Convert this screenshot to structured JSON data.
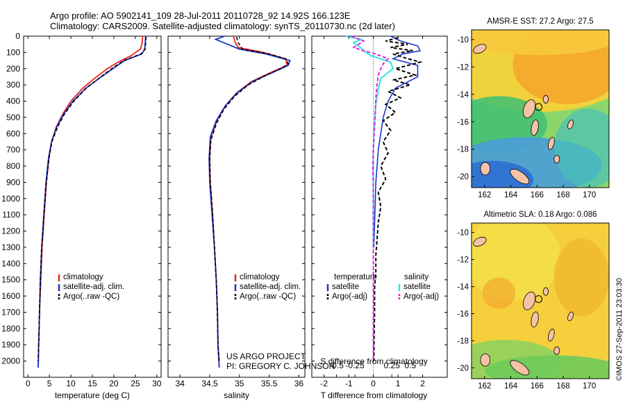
{
  "header": {
    "line1": "Argo profile: AO 5902141_109 28-Jul-2011 20110728_92 14.92S 166.123E",
    "line2": "Climatology: CARS2009. Satellite-adjusted climatology: synTS_20110730.nc (2d later)"
  },
  "colors": {
    "climatology": "#e8231c",
    "satellite": "#1a33cc",
    "argo": "#000000",
    "salinity_satellite": "#2ee6e6",
    "salinity_argo": "#e020e0"
  },
  "footer": {
    "project_line1": "US ARGO PROJECT",
    "project_line2": "PI: GREGORY C. JOHNSON",
    "timestamp": "©IMOS 27-Sep-2011 23:03:30"
  },
  "chart_data": [
    {
      "type": "line",
      "id": "temperature",
      "xlabel": "temperature (deg C)",
      "xlim": [
        -1,
        31
      ],
      "xticks": [
        0,
        5,
        10,
        15,
        20,
        25,
        30
      ],
      "xtick_labels": [
        "0",
        "5",
        "10",
        "15",
        "20",
        "25",
        "30"
      ],
      "ylim": [
        0,
        2100
      ],
      "yticks": [
        0,
        100,
        200,
        300,
        400,
        500,
        600,
        700,
        800,
        900,
        1000,
        1100,
        1200,
        1300,
        1400,
        1500,
        1600,
        1700,
        1800,
        1900,
        2000
      ],
      "ytick_labels": [
        "0",
        "100",
        "200",
        "300",
        "400",
        "500",
        "600",
        "700",
        "800",
        "900",
        "1000",
        "1100",
        "1200",
        "1300",
        "1400",
        "1500",
        "1600",
        "1700",
        "1800",
        "1900",
        "2000"
      ],
      "legend": [
        "climatology",
        "satellite-adj. clim.",
        "Argo(..raw -QC)"
      ],
      "series": [
        {
          "name": "climatology",
          "depth": [
            0,
            40,
            80,
            120,
            160,
            200,
            260,
            320,
            400,
            480,
            560,
            650,
            750,
            900,
            1100,
            1300,
            1500,
            1700,
            1900,
            2040
          ],
          "values": [
            26.7,
            26.6,
            26.2,
            24.0,
            21.0,
            18.5,
            15.5,
            12.8,
            10.0,
            8.1,
            6.6,
            5.5,
            4.9,
            4.3,
            3.8,
            3.3,
            3.0,
            2.7,
            2.5,
            2.4
          ]
        },
        {
          "name": "satellite-adj. clim.",
          "depth": [
            0,
            40,
            80,
            110,
            150,
            200,
            260,
            320,
            400,
            480,
            560,
            650,
            750,
            900,
            1100,
            1300,
            1500,
            1700,
            1900,
            2040
          ],
          "values": [
            27.4,
            27.3,
            27.2,
            26.5,
            22.5,
            19.8,
            16.6,
            13.5,
            10.5,
            8.3,
            6.7,
            5.5,
            4.8,
            4.2,
            3.7,
            3.2,
            2.9,
            2.7,
            2.5,
            2.4
          ]
        },
        {
          "name": "Argo(..raw -QC)",
          "depth": [
            5,
            40,
            80,
            110,
            150,
            200,
            260,
            320,
            400,
            480,
            560,
            650,
            750,
            900,
            1100,
            1300,
            1500,
            1700,
            1900,
            2000
          ],
          "values": [
            27.5,
            27.4,
            27.3,
            26.3,
            22.3,
            19.5,
            16.5,
            13.6,
            10.7,
            8.5,
            6.9,
            5.6,
            4.9,
            4.3,
            3.7,
            3.2,
            2.9,
            2.7,
            2.5,
            2.4
          ]
        }
      ]
    },
    {
      "type": "line",
      "id": "salinity",
      "xlabel": "salinity",
      "xlim": [
        33.8,
        36.1
      ],
      "xticks": [
        34,
        34.5,
        35,
        35.5,
        36
      ],
      "xtick_labels": [
        "34",
        "34.5",
        "35",
        "35.5",
        "36"
      ],
      "ylim": [
        0,
        2100
      ],
      "legend": [
        "climatology",
        "satellite-adj. clim.",
        "Argo(..raw -QC)"
      ],
      "series": [
        {
          "name": "climatology",
          "depth": [
            0,
            40,
            70,
            100,
            140,
            180,
            220,
            280,
            350,
            430,
            520,
            620,
            750,
            900,
            1100,
            1300,
            1500,
            1700,
            1900,
            2040
          ],
          "values": [
            34.9,
            34.93,
            34.98,
            35.4,
            35.78,
            35.8,
            35.55,
            35.2,
            34.95,
            34.76,
            34.62,
            34.52,
            34.5,
            34.51,
            34.55,
            34.58,
            34.61,
            34.63,
            34.64,
            34.66
          ]
        },
        {
          "name": "satellite-adj. clim.",
          "depth": [
            0,
            20,
            50,
            80,
            110,
            150,
            180,
            220,
            280,
            350,
            430,
            520,
            620,
            750,
            900,
            1100,
            1300,
            1500,
            1700,
            1900,
            2040
          ],
          "values": [
            34.75,
            34.6,
            34.8,
            35.0,
            35.45,
            35.85,
            35.82,
            35.58,
            35.22,
            34.96,
            34.76,
            34.61,
            34.51,
            34.49,
            34.5,
            34.54,
            34.58,
            34.61,
            34.63,
            34.64,
            34.66
          ]
        },
        {
          "name": "Argo(..raw -QC)",
          "depth": [
            5,
            40,
            80,
            110,
            140,
            170,
            200,
            240,
            300,
            370,
            450,
            540,
            640,
            750,
            900,
            1100,
            1300,
            1500,
            1700,
            1900,
            2000
          ],
          "values": [
            34.95,
            34.98,
            35.05,
            35.5,
            35.78,
            35.82,
            35.7,
            35.45,
            35.15,
            34.92,
            34.74,
            34.61,
            34.52,
            34.5,
            34.51,
            34.55,
            34.58,
            34.61,
            34.63,
            34.64,
            34.66
          ]
        }
      ]
    },
    {
      "type": "line",
      "id": "differences",
      "xlabel": "T difference from climatology",
      "xlabel2": "S difference from climatology",
      "xlim": [
        -2.5,
        3.0
      ],
      "xticks": [
        -2,
        -1,
        0,
        1,
        2
      ],
      "xtick_labels": [
        "-2",
        "-1",
        "0",
        "1",
        "2"
      ],
      "xticks2": [
        -1.5,
        -0.75,
        0.75,
        1.5
      ],
      "xtick_labels2": [
        "-0.5",
        "-0.25",
        "0.25",
        "0.5"
      ],
      "ylim": [
        0,
        2100
      ],
      "legend_group1_title": "temperature",
      "legend_group1": [
        "satellite",
        "Argo(-adj)"
      ],
      "legend_group2_title": "salinity",
      "legend_group2": [
        "satellite",
        "Argo(-adj)"
      ],
      "series": [
        {
          "name": "T satellite",
          "depth": [
            0,
            30,
            60,
            90,
            110,
            140,
            180,
            250,
            320,
            400,
            500,
            600,
            700,
            800,
            900,
            1000,
            1100,
            1200,
            1300
          ],
          "values": [
            0.7,
            1.1,
            1.8,
            1.9,
            1.2,
            0.8,
            1.8,
            1.8,
            0.9,
            0.6,
            0.4,
            0.3,
            0.2,
            0.15,
            0.1,
            0.08,
            0.06,
            0.04,
            0.02
          ]
        },
        {
          "name": "T Argo(-adj)",
          "depth": [
            10,
            30,
            50,
            70,
            90,
            110,
            130,
            160,
            200,
            240,
            270,
            300,
            340,
            380,
            420,
            470,
            520,
            580,
            650,
            720,
            800,
            880,
            960,
            1050,
            1150,
            1250,
            1350,
            1450,
            1550,
            1700,
            1850,
            2000
          ],
          "values": [
            1.0,
            0.5,
            1.4,
            0.7,
            1.6,
            0.8,
            1.2,
            1.9,
            0.9,
            1.7,
            0.8,
            1.5,
            0.6,
            1.1,
            0.5,
            0.9,
            0.4,
            0.7,
            0.4,
            0.6,
            0.3,
            0.5,
            0.2,
            0.3,
            0.2,
            0.15,
            0.1,
            0.1,
            0.05,
            0.05,
            0.03,
            0.02
          ]
        },
        {
          "name": "S satellite",
          "depth": [
            0,
            20,
            40,
            60,
            90,
            120,
            160,
            200,
            260,
            330,
            420,
            520,
            620,
            750,
            900,
            1100,
            1300
          ],
          "values": [
            -1.1,
            -0.5,
            -0.8,
            -0.6,
            -0.4,
            -0.1,
            0.7,
            0.8,
            0.3,
            0.2,
            0.1,
            0.05,
            0.02,
            0.0,
            0.0,
            0.0,
            0.0
          ]
        },
        {
          "name": "S Argo(-adj)",
          "depth": [
            0,
            30,
            50,
            70,
            90,
            110,
            140,
            170,
            200,
            240,
            300,
            380,
            460,
            560,
            680,
            800,
            950,
            1100,
            1300,
            1500,
            1700,
            1900,
            2000
          ],
          "values": [
            -0.9,
            -0.4,
            -0.6,
            -0.8,
            -0.4,
            0.1,
            0.6,
            0.4,
            0.3,
            0.2,
            0.15,
            0.1,
            0.08,
            0.05,
            0.0,
            -0.02,
            0.0,
            0.0,
            0.0,
            0.0,
            0.0,
            0.0,
            0.0
          ]
        }
      ]
    },
    {
      "type": "heatmap",
      "id": "sst_map",
      "title": "AMSR-E SST: 27.2 Argo: 27.5",
      "xlim": [
        161,
        171.5
      ],
      "xticks": [
        162,
        164,
        166,
        168,
        170
      ],
      "xtick_labels": [
        "162",
        "164",
        "166",
        "168",
        "170"
      ],
      "ylim": [
        -20.8,
        -9.3
      ],
      "yticks": [
        -10,
        -12,
        -14,
        -16,
        -18,
        -20
      ],
      "ytick_labels": [
        "-10",
        "-12",
        "-14",
        "-16",
        "-18",
        "-20"
      ],
      "marker": {
        "lon": 166.12,
        "lat": -14.92
      }
    },
    {
      "type": "heatmap",
      "id": "sla_map",
      "title": "Altimetric SLA: 0.18 Argo: 0.086",
      "xlim": [
        161,
        171.5
      ],
      "xticks": [
        162,
        164,
        166,
        168,
        170
      ],
      "xtick_labels": [
        "162",
        "164",
        "166",
        "168",
        "170"
      ],
      "ylim": [
        -20.8,
        -9.3
      ],
      "yticks": [
        -10,
        -12,
        -14,
        -16,
        -18,
        -20
      ],
      "ytick_labels": [
        "-10",
        "-12",
        "-14",
        "-16",
        "-18",
        "-20"
      ],
      "marker": {
        "lon": 166.12,
        "lat": -14.92
      }
    }
  ]
}
